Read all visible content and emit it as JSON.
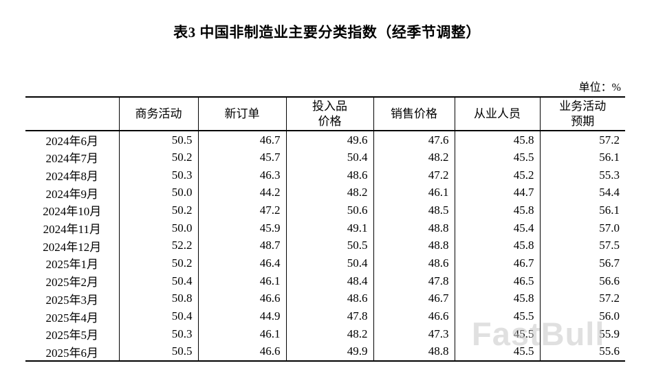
{
  "page": {
    "title": "表3 中国非制造业主要分类指数（经季节调整）",
    "unit_label": "单位：%",
    "watermark": "FastBull"
  },
  "table": {
    "columns": [
      "",
      "商务活动",
      "新订单",
      "投入品\n价格",
      "销售价格",
      "从业人员",
      "业务活动\n预期"
    ],
    "rows": [
      {
        "month": "2024年6月",
        "values": [
          "50.5",
          "46.7",
          "49.6",
          "47.6",
          "45.8",
          "57.2"
        ]
      },
      {
        "month": "2024年7月",
        "values": [
          "50.2",
          "45.7",
          "50.4",
          "48.2",
          "45.5",
          "56.1"
        ]
      },
      {
        "month": "2024年8月",
        "values": [
          "50.3",
          "46.3",
          "48.6",
          "47.2",
          "45.2",
          "55.3"
        ]
      },
      {
        "month": "2024年9月",
        "values": [
          "50.0",
          "44.2",
          "48.2",
          "46.1",
          "44.7",
          "54.4"
        ]
      },
      {
        "month": "2024年10月",
        "values": [
          "50.2",
          "47.2",
          "50.6",
          "48.5",
          "45.8",
          "56.1"
        ]
      },
      {
        "month": "2024年11月",
        "values": [
          "50.0",
          "45.9",
          "49.1",
          "48.8",
          "45.4",
          "57.0"
        ]
      },
      {
        "month": "2024年12月",
        "values": [
          "52.2",
          "48.7",
          "50.5",
          "48.8",
          "45.8",
          "57.5"
        ]
      },
      {
        "month": "2025年1月",
        "values": [
          "50.2",
          "46.4",
          "50.4",
          "48.6",
          "46.7",
          "56.7"
        ]
      },
      {
        "month": "2025年2月",
        "values": [
          "50.4",
          "46.1",
          "48.4",
          "47.8",
          "46.5",
          "56.6"
        ]
      },
      {
        "month": "2025年3月",
        "values": [
          "50.8",
          "46.6",
          "48.6",
          "46.7",
          "45.8",
          "57.2"
        ]
      },
      {
        "month": "2025年4月",
        "values": [
          "50.4",
          "44.9",
          "47.8",
          "46.6",
          "45.5",
          "56.0"
        ]
      },
      {
        "month": "2025年5月",
        "values": [
          "50.3",
          "46.1",
          "48.2",
          "47.3",
          "45.5",
          "55.9"
        ]
      },
      {
        "month": "2025年6月",
        "values": [
          "50.5",
          "46.6",
          "49.9",
          "48.8",
          "45.5",
          "55.6"
        ]
      }
    ]
  }
}
